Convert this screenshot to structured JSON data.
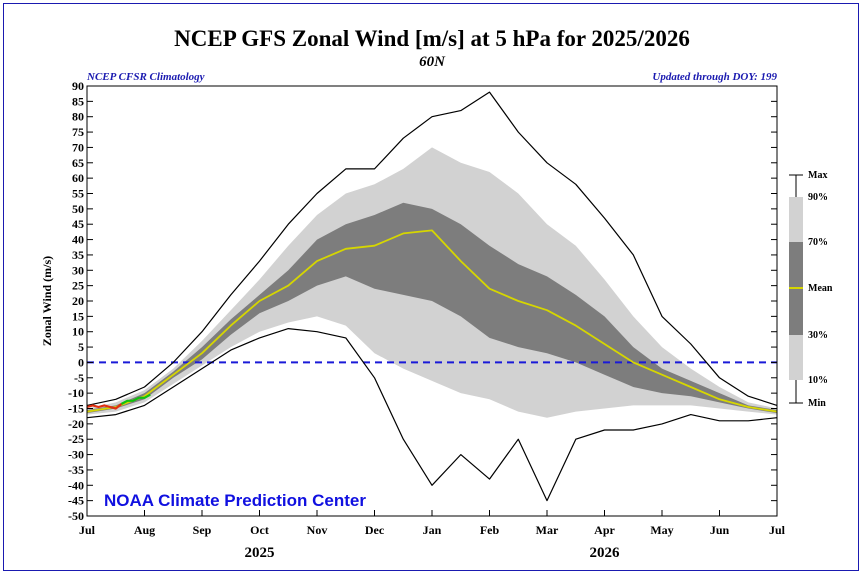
{
  "chart_data": {
    "type": "area",
    "title": "NCEP GFS Zonal Wind [m/s] at 5 hPa for 2025/2026",
    "subtitle": "60N",
    "note_left": "NCEP CFSR Climatology",
    "note_right": "Updated through DOY: 199",
    "ylabel": "Zonal Wind (m/s)",
    "credit": "NOAA Climate Prediction Center",
    "ylim": [
      -50,
      90
    ],
    "yticks": [
      90,
      85,
      80,
      75,
      70,
      65,
      60,
      55,
      50,
      45,
      40,
      35,
      30,
      25,
      20,
      15,
      10,
      5,
      0,
      -5,
      -10,
      -15,
      -20,
      -25,
      -30,
      -35,
      -40,
      -45,
      -50
    ],
    "xlim": [
      0,
      12
    ],
    "xtick_labels": [
      "Jul",
      "Aug",
      "Sep",
      "Oct",
      "Nov",
      "Dec",
      "Jan",
      "Feb",
      "Mar",
      "Apr",
      "May",
      "Jun",
      "Jul"
    ],
    "year_labels": [
      {
        "label": "2025",
        "x": 3.0
      },
      {
        "label": "2026",
        "x": 9.0
      }
    ],
    "zero_line": 0,
    "x": [
      0,
      0.5,
      1,
      1.5,
      2,
      2.5,
      3,
      3.5,
      4,
      4.5,
      5,
      5.5,
      6,
      6.5,
      7,
      7.5,
      8,
      8.5,
      9,
      9.5,
      10,
      10.5,
      11,
      11.5,
      12
    ],
    "series": [
      {
        "name": "Max",
        "values": [
          -14,
          -12,
          -8,
          0,
          10,
          22,
          33,
          45,
          55,
          63,
          63,
          73,
          80,
          82,
          88,
          75,
          65,
          58,
          47,
          35,
          15,
          6,
          -5,
          -11,
          -14
        ]
      },
      {
        "name": "90%",
        "values": [
          -15,
          -13,
          -9,
          -2,
          7,
          17,
          27,
          38,
          48,
          55,
          58,
          63,
          70,
          65,
          62,
          55,
          45,
          38,
          27,
          15,
          5,
          -2,
          -8,
          -13,
          -15
        ]
      },
      {
        "name": "70%",
        "values": [
          -15.5,
          -14,
          -10,
          -3,
          5,
          14,
          22,
          30,
          40,
          45,
          48,
          52,
          50,
          45,
          38,
          32,
          28,
          22,
          15,
          5,
          -2,
          -6,
          -10,
          -14,
          -15.5
        ]
      },
      {
        "name": "Mean",
        "values": [
          -16,
          -14.5,
          -11,
          -4,
          3,
          12,
          20,
          25,
          33,
          37,
          38,
          42,
          43,
          33,
          24,
          20,
          17,
          12,
          6,
          0,
          -4,
          -8,
          -12,
          -14.5,
          -16
        ]
      },
      {
        "name": "30%",
        "values": [
          -16.5,
          -15,
          -12,
          -5,
          1,
          9,
          16,
          20,
          25,
          28,
          24,
          22,
          20,
          15,
          8,
          5,
          3,
          0,
          -4,
          -8,
          -10,
          -11,
          -13,
          -15,
          -16.5
        ]
      },
      {
        "name": "10%",
        "values": [
          -17,
          -16,
          -13,
          -7,
          -1,
          5,
          10,
          13,
          15,
          12,
          3,
          -2,
          -6,
          -10,
          -12,
          -16,
          -18,
          -16,
          -15,
          -14,
          -14,
          -14,
          -15,
          -16,
          -17
        ]
      },
      {
        "name": "Min",
        "values": [
          -18,
          -17,
          -14,
          -8,
          -2,
          4,
          8,
          11,
          10,
          8,
          -5,
          -25,
          -40,
          -30,
          -38,
          -25,
          -45,
          -25,
          -22,
          -22,
          -20,
          -17,
          -19,
          -19,
          -18
        ]
      }
    ],
    "current_year": {
      "x": [
        0,
        0.1,
        0.2,
        0.3,
        0.4,
        0.5,
        0.6
      ],
      "values": [
        -14.5,
        -14,
        -14.5,
        -14,
        -14.5,
        -15,
        -13.5
      ]
    },
    "forecast": {
      "x": [
        0.6,
        0.7,
        0.8,
        0.9,
        1.0,
        1.1
      ],
      "values": [
        -13.5,
        -12.5,
        -12.5,
        -11.5,
        -11.5,
        -10.5
      ]
    },
    "legend": {
      "position": "right",
      "entries": [
        "Max",
        "90%",
        "70%",
        "Mean",
        "30%",
        "10%",
        "Min"
      ]
    },
    "colors": {
      "outer_band": "#d2d2d2",
      "inner_band": "#7d7d7d",
      "mean": "#d6d600",
      "extreme": "#000000",
      "zero_line": "#1a1ad8",
      "current": "#e03010",
      "forecast": "#10c010",
      "credit": "#1010e0"
    }
  }
}
